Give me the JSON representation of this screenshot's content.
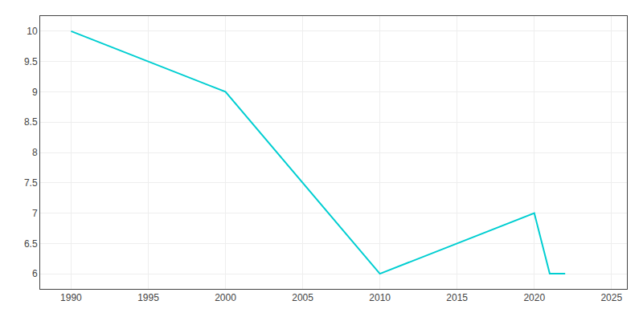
{
  "chart_data": {
    "type": "line",
    "x": [
      1990,
      2000,
      2010,
      2020,
      2021,
      2022
    ],
    "values": [
      10,
      9,
      6,
      7,
      6,
      6
    ],
    "color": "#00CED1",
    "xlim": [
      1988,
      2026
    ],
    "ylim": [
      5.75,
      10.25
    ],
    "xticks": [
      1990,
      1995,
      2000,
      2005,
      2010,
      2015,
      2020,
      2025
    ],
    "yticks": [
      6,
      6.5,
      7,
      7.5,
      8,
      8.5,
      9,
      9.5,
      10
    ],
    "grid": true
  }
}
